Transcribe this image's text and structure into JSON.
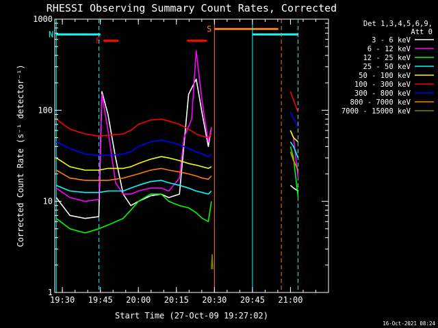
{
  "chart_data": {
    "type": "line",
    "title": "RHESSI Observing Summary Count Rates, Corrected",
    "xlabel": "Start Time (27-Oct-09 19:27:02)",
    "ylabel": "Corrected Count Rate (s⁻¹ detector⁻¹)",
    "yscale": "log",
    "xlim": [
      19.45,
      21.25
    ],
    "ylim": [
      1,
      1000
    ],
    "x_unit": "hours UT",
    "x_ticks": [
      {
        "x": 19.5,
        "label": "19:30"
      },
      {
        "x": 19.75,
        "label": "19:45"
      },
      {
        "x": 20.0,
        "label": "20:00"
      },
      {
        "x": 20.25,
        "label": "20:15"
      },
      {
        "x": 20.5,
        "label": "20:30"
      },
      {
        "x": 20.75,
        "label": "20:45"
      },
      {
        "x": 21.0,
        "label": "21:00"
      }
    ],
    "y_ticks": [
      {
        "y": 1,
        "label": "1"
      },
      {
        "y": 10,
        "label": "10"
      },
      {
        "y": 100,
        "label": "100"
      },
      {
        "y": 1000,
        "label": "1000"
      }
    ],
    "legend_title": [
      "Det 1,3,4,5,6,9,",
      "Att 0"
    ],
    "legend_position": "right",
    "series": [
      {
        "name": "3 - 6 keV",
        "color": "#ffffff",
        "x": [
          19.46,
          19.55,
          19.65,
          19.74,
          19.76,
          19.8,
          19.85,
          19.9,
          19.95,
          20.0,
          20.08,
          20.15,
          20.2,
          20.27,
          20.33,
          20.38,
          20.42,
          20.46,
          20.48,
          21.0,
          21.02,
          21.05
        ],
        "y": [
          11,
          7,
          6.5,
          6.8,
          160,
          90,
          30,
          12,
          9,
          10,
          11.5,
          12,
          11,
          12,
          150,
          220,
          90,
          40,
          65,
          15,
          14,
          13
        ]
      },
      {
        "name": "6 - 12 keV",
        "color": "#ff00ff",
        "x": [
          19.46,
          19.55,
          19.65,
          19.74,
          19.76,
          19.8,
          19.85,
          19.9,
          19.95,
          20.0,
          20.08,
          20.15,
          20.2,
          20.27,
          20.3,
          20.35,
          20.38,
          20.42,
          20.46,
          20.48,
          21.0,
          21.02,
          21.05
        ],
        "y": [
          14,
          11,
          10,
          10.5,
          150,
          60,
          16,
          12,
          12,
          13,
          14,
          14,
          13,
          18,
          50,
          80,
          450,
          120,
          45,
          65,
          60,
          50,
          18
        ]
      },
      {
        "name": "12 - 25 keV",
        "color": "#00ff00",
        "x": [
          19.46,
          19.55,
          19.65,
          19.74,
          19.8,
          19.9,
          19.95,
          20.0,
          20.08,
          20.15,
          20.2,
          20.27,
          20.33,
          20.38,
          20.42,
          20.46,
          20.48,
          21.0,
          21.02,
          21.05
        ],
        "y": [
          6.5,
          5.0,
          4.5,
          5.0,
          5.5,
          6.5,
          8,
          10,
          12,
          12,
          10,
          9,
          8.5,
          7.5,
          6.5,
          6.0,
          10,
          40,
          30,
          11
        ]
      },
      {
        "name": "25 - 50 keV",
        "color": "#00ffff",
        "x": [
          19.46,
          19.55,
          19.65,
          19.74,
          19.8,
          19.9,
          19.95,
          20.0,
          20.08,
          20.15,
          20.2,
          20.27,
          20.33,
          20.38,
          20.42,
          20.46,
          20.48,
          21.0,
          21.02,
          21.05
        ],
        "y": [
          15,
          13,
          12.5,
          12.5,
          13,
          13,
          14,
          15,
          16.5,
          17,
          16,
          15,
          14,
          13,
          12.5,
          12,
          13,
          45,
          40,
          30
        ]
      },
      {
        "name": "50 - 100 keV",
        "color": "#ffff00",
        "x": [
          19.46,
          19.55,
          19.65,
          19.74,
          19.8,
          19.9,
          19.95,
          20.0,
          20.08,
          20.15,
          20.2,
          20.27,
          20.33,
          20.38,
          20.42,
          20.46,
          20.48,
          21.0,
          21.02,
          21.05
        ],
        "y": [
          30,
          24,
          22,
          22,
          23,
          23,
          24,
          26,
          29,
          31,
          30,
          28,
          26,
          25,
          24,
          23,
          24,
          60,
          50,
          45
        ]
      },
      {
        "name": "100 - 300 keV",
        "color": "#ff0000",
        "x": [
          19.46,
          19.55,
          19.65,
          19.74,
          19.8,
          19.9,
          19.95,
          20.0,
          20.08,
          20.15,
          20.2,
          20.27,
          20.33,
          20.38,
          20.42,
          20.46,
          20.48,
          21.0,
          21.05
        ],
        "y": [
          80,
          62,
          55,
          52,
          53,
          55,
          60,
          70,
          78,
          80,
          76,
          70,
          62,
          55,
          52,
          50,
          55,
          160,
          95
        ]
      },
      {
        "name": "300 - 800 keV",
        "color": "#0000ff",
        "x": [
          19.46,
          19.55,
          19.65,
          19.74,
          19.8,
          19.9,
          19.95,
          20.0,
          20.08,
          20.15,
          20.2,
          20.27,
          20.33,
          20.38,
          20.42,
          20.46,
          20.48,
          21.0,
          21.05
        ],
        "y": [
          45,
          38,
          33,
          32,
          32,
          33,
          35,
          40,
          45,
          47,
          45,
          42,
          38,
          35,
          33,
          31,
          33,
          95,
          65
        ]
      },
      {
        "name": "800 - 7000 keV",
        "color": "#ff8000",
        "x": [
          19.46,
          19.55,
          19.65,
          19.74,
          19.8,
          19.9,
          19.95,
          20.0,
          20.08,
          20.15,
          20.2,
          20.27,
          20.33,
          20.38,
          20.42,
          20.46,
          20.48,
          21.0,
          21.02,
          21.05
        ],
        "y": [
          22,
          18,
          17,
          17,
          17,
          18,
          19,
          20,
          22,
          23,
          22,
          21,
          20,
          19,
          18,
          17.5,
          19,
          35,
          28,
          22
        ]
      },
      {
        "name": "7000 - 15000 keV",
        "color": "#808000",
        "x": [
          20.48,
          20.485,
          20.49
        ],
        "y": [
          1.8,
          2.6,
          1.8
        ]
      }
    ],
    "flags": [
      {
        "label": "N",
        "color": "#00ffff",
        "y": 680,
        "x_start": 19.46,
        "x_end": 19.75
      },
      {
        "label": "",
        "color": "#00ffff",
        "y": 680,
        "x_start": 20.75,
        "x_end": 21.05
      },
      {
        "label": "F",
        "color": "#ff0000",
        "y": 580,
        "x_start": 19.77,
        "x_end": 19.87
      },
      {
        "label": "",
        "color": "#ff0000",
        "y": 580,
        "x_start": 20.32,
        "x_end": 20.45
      },
      {
        "label": "S",
        "color": "#ff8000",
        "y": 780,
        "x_start": 20.5,
        "x_end": 20.92
      }
    ],
    "markers": [
      {
        "x": 19.46,
        "color": "#00ffff",
        "style": "solid"
      },
      {
        "x": 19.74,
        "color": "#00ffff",
        "style": "dashed"
      },
      {
        "x": 20.5,
        "color": "#ff8000",
        "style": "solid"
      },
      {
        "x": 20.75,
        "color": "#00ffff",
        "style": "solid"
      },
      {
        "x": 20.94,
        "color": "#ff8000",
        "style": "dashed"
      },
      {
        "x": 21.05,
        "color": "#00ffff",
        "style": "dashed"
      }
    ],
    "timestamp": "16-Oct-2021 08:24"
  }
}
